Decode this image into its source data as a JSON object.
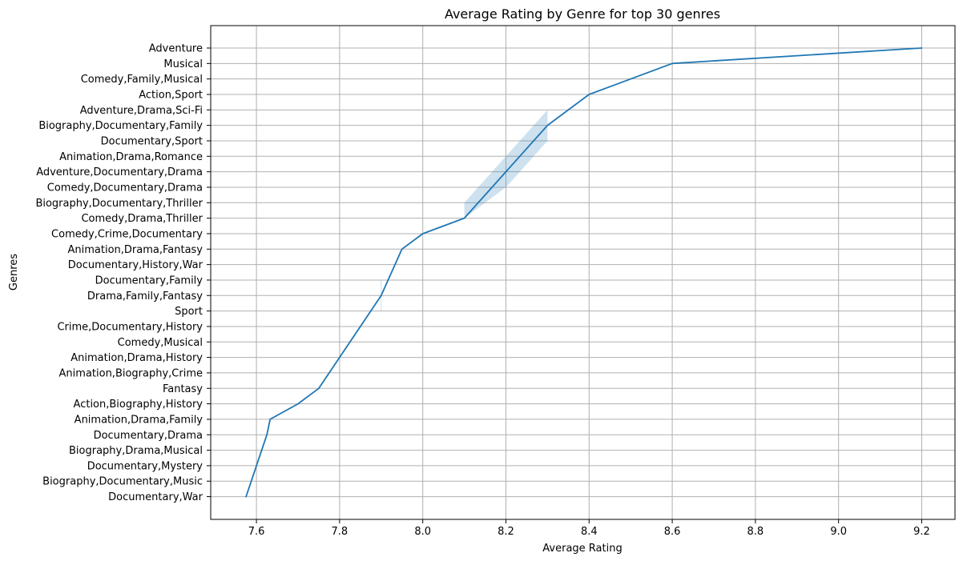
{
  "chart_data": {
    "type": "line",
    "title": "Average Rating by Genre for top 30 genres",
    "xlabel": "Average Rating",
    "ylabel": "Genres",
    "xlim": [
      7.49,
      9.28
    ],
    "xticks": [
      7.6,
      7.8,
      8.0,
      8.2,
      8.4,
      8.6,
      8.8,
      9.0,
      9.2
    ],
    "xtick_labels": [
      "7.6",
      "7.8",
      "8.0",
      "8.2",
      "8.4",
      "8.6",
      "8.8",
      "9.0",
      "9.2"
    ],
    "grid": true,
    "legend": false,
    "line_color": "#1f77b4",
    "band_color": "#1f77b4",
    "categories": [
      "Adventure",
      "Musical",
      "Comedy,Family,Musical",
      "Action,Sport",
      "Adventure,Drama,Sci-Fi",
      "Biography,Documentary,Family",
      "Documentary,Sport",
      "Animation,Drama,Romance",
      "Adventure,Documentary,Drama",
      "Comedy,Documentary,Drama",
      "Biography,Documentary,Thriller",
      "Comedy,Drama,Thriller",
      "Comedy,Crime,Documentary",
      "Animation,Drama,Fantasy",
      "Documentary,History,War",
      "Documentary,Family",
      "Drama,Family,Fantasy",
      "Sport",
      "Crime,Documentary,History",
      "Comedy,Musical",
      "Animation,Drama,History",
      "Animation,Biography,Crime",
      "Fantasy",
      "Action,Biography,History",
      "Animation,Drama,Family",
      "Documentary,Drama",
      "Biography,Drama,Musical",
      "Documentary,Mystery",
      "Biography,Documentary,Music",
      "Documentary,War"
    ],
    "line_points": [
      {
        "x": 9.2,
        "y": "Adventure"
      },
      {
        "x": 8.6,
        "y": "Musical"
      },
      {
        "x": 8.4,
        "y": "Action,Sport"
      },
      {
        "x": 8.3,
        "y": "Biography,Documentary,Family"
      },
      {
        "x": 8.2,
        "y": "Adventure,Documentary,Drama"
      },
      {
        "x": 8.1,
        "y": "Comedy,Drama,Thriller"
      },
      {
        "x": 8.0,
        "y": "Comedy,Crime,Documentary"
      },
      {
        "x": 7.95,
        "y": "Animation,Drama,Fantasy"
      },
      {
        "x": 7.9,
        "y": "Drama,Family,Fantasy"
      },
      {
        "x": 7.75,
        "y": "Fantasy"
      },
      {
        "x": 7.7,
        "y": "Action,Biography,History"
      },
      {
        "x": 7.633,
        "y": "Animation,Drama,Family"
      },
      {
        "x": 7.625,
        "y": "Documentary,Drama"
      },
      {
        "x": 7.575,
        "y": "Documentary,War"
      }
    ],
    "confidence_band": [
      {
        "y_lower": 8.1,
        "y_upper": 8.3,
        "x_lower": 8.3,
        "x_upper": 8.3,
        "between": [
          "Adventure,Drama,Sci-Fi",
          "Comedy,Drama,Thriller"
        ]
      }
    ],
    "band_outline": [
      {
        "x": 8.3,
        "y": "Adventure,Drama,Sci-Fi"
      },
      {
        "x": 8.3,
        "y": "Documentary,Sport"
      },
      {
        "x": 8.2,
        "y": "Comedy,Documentary,Drama"
      },
      {
        "x": 8.1,
        "y": "Comedy,Drama,Thriller"
      },
      {
        "x": 8.1,
        "y": "Biography,Documentary,Thriller"
      },
      {
        "x": 8.2,
        "y": "Animation,Drama,Romance"
      }
    ]
  }
}
